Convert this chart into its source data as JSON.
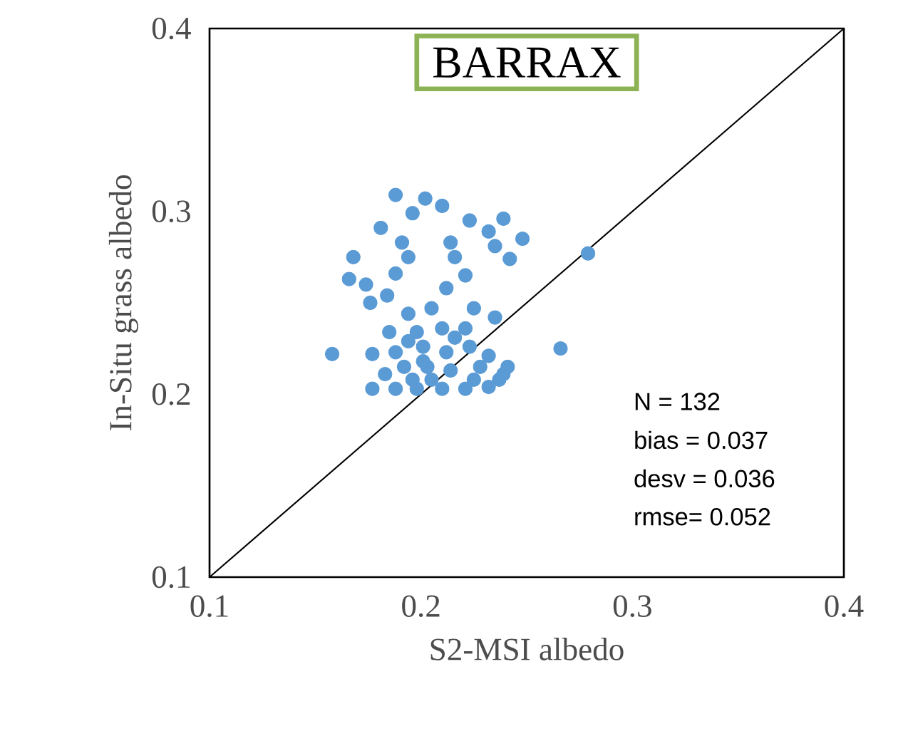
{
  "chart_data": {
    "type": "scatter",
    "title": "BARRAX",
    "xlabel": "S2-MSI albedo",
    "ylabel": "In-Situ grass albedo",
    "xlim": [
      0.1,
      0.4
    ],
    "ylim": [
      0.1,
      0.4
    ],
    "xticks": [
      0.1,
      0.2,
      0.3,
      0.4
    ],
    "yticks": [
      0.1,
      0.2,
      0.3,
      0.4
    ],
    "grid": false,
    "series": [
      {
        "marker": "circle",
        "color": "#5b9bd5",
        "x": [
          0.188,
          0.181,
          0.168,
          0.166,
          0.158,
          0.177,
          0.177,
          0.279,
          0.266,
          0.248,
          0.242,
          0.239,
          0.223,
          0.21,
          0.202,
          0.196,
          0.191,
          0.194,
          0.214,
          0.216,
          0.232,
          0.235,
          0.188,
          0.221,
          0.212,
          0.174,
          0.176,
          0.184,
          0.194,
          0.205,
          0.225,
          0.235,
          0.221,
          0.185,
          0.198,
          0.21,
          0.188,
          0.201,
          0.212,
          0.223,
          0.232,
          0.241,
          0.237,
          0.225,
          0.214,
          0.203,
          0.192,
          0.183,
          0.188,
          0.198,
          0.21,
          0.221,
          0.232,
          0.239,
          0.196,
          0.205,
          0.201,
          0.194,
          0.216,
          0.228
        ],
        "values": [
          0.309,
          0.291,
          0.275,
          0.263,
          0.222,
          0.222,
          0.203,
          0.277,
          0.225,
          0.285,
          0.274,
          0.296,
          0.295,
          0.303,
          0.307,
          0.299,
          0.283,
          0.275,
          0.283,
          0.275,
          0.289,
          0.281,
          0.266,
          0.265,
          0.258,
          0.26,
          0.25,
          0.254,
          0.244,
          0.247,
          0.247,
          0.242,
          0.236,
          0.234,
          0.234,
          0.236,
          0.223,
          0.226,
          0.223,
          0.226,
          0.221,
          0.215,
          0.208,
          0.208,
          0.213,
          0.215,
          0.215,
          0.211,
          0.203,
          0.203,
          0.203,
          0.203,
          0.204,
          0.211,
          0.208,
          0.208,
          0.218,
          0.229,
          0.231,
          0.215
        ]
      },
      {
        "type": "line",
        "marker": "none",
        "color": "#000000",
        "x": [
          0.1,
          0.4
        ],
        "values": [
          0.1,
          0.4
        ]
      }
    ],
    "annotations": [
      "N     = 132",
      "bias  = 0.037",
      "desv = 0.036",
      "rmse= 0.052"
    ]
  }
}
